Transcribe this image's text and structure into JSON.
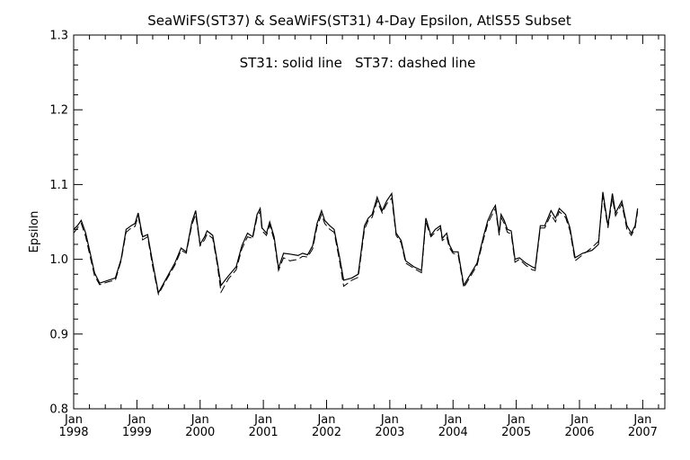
{
  "chart_data": {
    "type": "line",
    "title": "SeaWiFS(ST37) & SeaWiFS(ST31) 4-Day Epsilon, AtlS55 Subset",
    "annotation": "ST31: solid line   ST37: dashed line",
    "ylabel": "Epsilon",
    "xlabel": "",
    "xlim": [
      1998.0,
      2007.35
    ],
    "ylim": [
      0.8,
      1.3
    ],
    "grid": false,
    "y_ticks": [
      "0.8",
      "0.9",
      "1.0",
      "1.1",
      "1.2",
      "1.3"
    ],
    "x_ticks": [
      {
        "month": "Jan",
        "year": "1998",
        "x": 1998
      },
      {
        "month": "Jan",
        "year": "1999",
        "x": 1999
      },
      {
        "month": "Jan",
        "year": "2000",
        "x": 2000
      },
      {
        "month": "Jan",
        "year": "2001",
        "x": 2001
      },
      {
        "month": "Jan",
        "year": "2002",
        "x": 2002
      },
      {
        "month": "Jan",
        "year": "2003",
        "x": 2003
      },
      {
        "month": "Jan",
        "year": "2004",
        "x": 2004
      },
      {
        "month": "Jan",
        "year": "2005",
        "x": 2005
      },
      {
        "month": "Jan",
        "year": "2006",
        "x": 2006
      },
      {
        "month": "Jan",
        "year": "2007",
        "x": 2007
      }
    ],
    "series": [
      {
        "name": "ST31",
        "style": "solid",
        "points": [
          [
            1998.0,
            1.04
          ],
          [
            1998.06,
            1.045
          ],
          [
            1998.12,
            1.052
          ],
          [
            1998.19,
            1.035
          ],
          [
            1998.27,
            1.005
          ],
          [
            1998.33,
            0.982
          ],
          [
            1998.41,
            0.968
          ],
          [
            1998.55,
            0.972
          ],
          [
            1998.66,
            0.975
          ],
          [
            1998.75,
            1.0
          ],
          [
            1998.83,
            1.04
          ],
          [
            1998.91,
            1.045
          ],
          [
            1998.97,
            1.048
          ],
          [
            1999.02,
            1.062
          ],
          [
            1999.09,
            1.03
          ],
          [
            1999.17,
            1.033
          ],
          [
            1999.25,
            0.995
          ],
          [
            1999.34,
            0.955
          ],
          [
            1999.45,
            0.972
          ],
          [
            1999.6,
            0.995
          ],
          [
            1999.7,
            1.015
          ],
          [
            1999.78,
            1.01
          ],
          [
            1999.87,
            1.05
          ],
          [
            1999.93,
            1.065
          ],
          [
            2000.0,
            1.02
          ],
          [
            2000.07,
            1.03
          ],
          [
            2000.11,
            1.038
          ],
          [
            2000.2,
            1.032
          ],
          [
            2000.27,
            0.998
          ],
          [
            2000.33,
            0.965
          ],
          [
            2000.45,
            0.978
          ],
          [
            2000.57,
            0.99
          ],
          [
            2000.66,
            1.018
          ],
          [
            2000.75,
            1.035
          ],
          [
            2000.83,
            1.03
          ],
          [
            2000.9,
            1.06
          ],
          [
            2000.95,
            1.068
          ],
          [
            2000.98,
            1.042
          ],
          [
            2001.05,
            1.035
          ],
          [
            2001.1,
            1.05
          ],
          [
            2001.17,
            1.03
          ],
          [
            2001.24,
            0.988
          ],
          [
            2001.32,
            1.008
          ],
          [
            2001.42,
            1.007
          ],
          [
            2001.55,
            1.005
          ],
          [
            2001.62,
            1.008
          ],
          [
            2001.7,
            1.006
          ],
          [
            2001.78,
            1.018
          ],
          [
            2001.85,
            1.048
          ],
          [
            2001.92,
            1.065
          ],
          [
            2001.97,
            1.052
          ],
          [
            2002.05,
            1.045
          ],
          [
            2002.12,
            1.04
          ],
          [
            2002.2,
            1.005
          ],
          [
            2002.27,
            0.972
          ],
          [
            2002.4,
            0.975
          ],
          [
            2002.5,
            0.98
          ],
          [
            2002.6,
            1.045
          ],
          [
            2002.66,
            1.055
          ],
          [
            2002.72,
            1.06
          ],
          [
            2002.8,
            1.083
          ],
          [
            2002.88,
            1.065
          ],
          [
            2002.95,
            1.078
          ],
          [
            2003.03,
            1.088
          ],
          [
            2003.1,
            1.035
          ],
          [
            2003.18,
            1.025
          ],
          [
            2003.25,
            0.998
          ],
          [
            2003.38,
            0.99
          ],
          [
            2003.5,
            0.985
          ],
          [
            2003.57,
            1.055
          ],
          [
            2003.65,
            1.032
          ],
          [
            2003.72,
            1.04
          ],
          [
            2003.8,
            1.045
          ],
          [
            2003.83,
            1.028
          ],
          [
            2003.9,
            1.035
          ],
          [
            2003.94,
            1.02
          ],
          [
            2004.0,
            1.01
          ],
          [
            2004.08,
            1.01
          ],
          [
            2004.17,
            0.965
          ],
          [
            2004.38,
            0.995
          ],
          [
            2004.48,
            1.03
          ],
          [
            2004.55,
            1.052
          ],
          [
            2004.62,
            1.065
          ],
          [
            2004.67,
            1.072
          ],
          [
            2004.73,
            1.035
          ],
          [
            2004.76,
            1.06
          ],
          [
            2004.81,
            1.052
          ],
          [
            2004.86,
            1.04
          ],
          [
            2004.92,
            1.038
          ],
          [
            2004.98,
            1.0
          ],
          [
            2005.05,
            1.002
          ],
          [
            2005.15,
            0.995
          ],
          [
            2005.25,
            0.99
          ],
          [
            2005.3,
            0.988
          ],
          [
            2005.38,
            1.045
          ],
          [
            2005.45,
            1.045
          ],
          [
            2005.55,
            1.065
          ],
          [
            2005.62,
            1.055
          ],
          [
            2005.68,
            1.068
          ],
          [
            2005.78,
            1.06
          ],
          [
            2005.85,
            1.042
          ],
          [
            2005.93,
            1.002
          ],
          [
            2006.05,
            1.008
          ],
          [
            2006.2,
            1.012
          ],
          [
            2006.3,
            1.02
          ],
          [
            2006.37,
            1.09
          ],
          [
            2006.45,
            1.045
          ],
          [
            2006.52,
            1.088
          ],
          [
            2006.57,
            1.062
          ],
          [
            2006.67,
            1.078
          ],
          [
            2006.75,
            1.045
          ],
          [
            2006.82,
            1.035
          ],
          [
            2006.88,
            1.045
          ],
          [
            2006.92,
            1.068
          ]
        ]
      },
      {
        "name": "ST37",
        "style": "dashed",
        "points": [
          [
            1998.0,
            1.035
          ],
          [
            1998.06,
            1.042
          ],
          [
            1998.12,
            1.048
          ],
          [
            1998.19,
            1.03
          ],
          [
            1998.27,
            1.0
          ],
          [
            1998.33,
            0.978
          ],
          [
            1998.41,
            0.966
          ],
          [
            1998.55,
            0.97
          ],
          [
            1998.66,
            0.972
          ],
          [
            1998.75,
            0.998
          ],
          [
            1998.83,
            1.036
          ],
          [
            1998.91,
            1.042
          ],
          [
            1998.97,
            1.044
          ],
          [
            1999.02,
            1.058
          ],
          [
            1999.09,
            1.026
          ],
          [
            1999.17,
            1.03
          ],
          [
            1999.25,
            0.99
          ],
          [
            1999.34,
            0.953
          ],
          [
            1999.45,
            0.97
          ],
          [
            1999.6,
            0.992
          ],
          [
            1999.7,
            1.012
          ],
          [
            1999.78,
            1.008
          ],
          [
            1999.87,
            1.046
          ],
          [
            1999.93,
            1.06
          ],
          [
            2000.0,
            1.018
          ],
          [
            2000.07,
            1.026
          ],
          [
            2000.11,
            1.034
          ],
          [
            2000.2,
            1.028
          ],
          [
            2000.27,
            0.994
          ],
          [
            2000.33,
            0.956
          ],
          [
            2000.45,
            0.974
          ],
          [
            2000.57,
            0.986
          ],
          [
            2000.66,
            1.014
          ],
          [
            2000.75,
            1.03
          ],
          [
            2000.83,
            1.028
          ],
          [
            2000.9,
            1.056
          ],
          [
            2000.95,
            1.064
          ],
          [
            2000.98,
            1.038
          ],
          [
            2001.05,
            1.032
          ],
          [
            2001.1,
            1.046
          ],
          [
            2001.17,
            1.026
          ],
          [
            2001.24,
            0.985
          ],
          [
            2001.32,
            1.002
          ],
          [
            2001.42,
            0.998
          ],
          [
            2001.55,
            1.0
          ],
          [
            2001.62,
            1.004
          ],
          [
            2001.7,
            1.003
          ],
          [
            2001.78,
            1.014
          ],
          [
            2001.85,
            1.044
          ],
          [
            2001.92,
            1.06
          ],
          [
            2001.97,
            1.048
          ],
          [
            2002.05,
            1.04
          ],
          [
            2002.12,
            1.036
          ],
          [
            2002.2,
            1.0
          ],
          [
            2002.27,
            0.964
          ],
          [
            2002.4,
            0.972
          ],
          [
            2002.5,
            0.976
          ],
          [
            2002.6,
            1.04
          ],
          [
            2002.66,
            1.052
          ],
          [
            2002.72,
            1.056
          ],
          [
            2002.8,
            1.078
          ],
          [
            2002.88,
            1.062
          ],
          [
            2002.95,
            1.074
          ],
          [
            2003.03,
            1.082
          ],
          [
            2003.1,
            1.032
          ],
          [
            2003.18,
            1.022
          ],
          [
            2003.25,
            0.995
          ],
          [
            2003.38,
            0.988
          ],
          [
            2003.5,
            0.982
          ],
          [
            2003.57,
            1.05
          ],
          [
            2003.65,
            1.03
          ],
          [
            2003.72,
            1.036
          ],
          [
            2003.8,
            1.042
          ],
          [
            2003.83,
            1.025
          ],
          [
            2003.9,
            1.03
          ],
          [
            2003.94,
            1.016
          ],
          [
            2004.0,
            1.008
          ],
          [
            2004.08,
            1.006
          ],
          [
            2004.17,
            0.962
          ],
          [
            2004.38,
            0.992
          ],
          [
            2004.48,
            1.026
          ],
          [
            2004.55,
            1.048
          ],
          [
            2004.62,
            1.06
          ],
          [
            2004.67,
            1.068
          ],
          [
            2004.73,
            1.032
          ],
          [
            2004.76,
            1.056
          ],
          [
            2004.81,
            1.048
          ],
          [
            2004.86,
            1.036
          ],
          [
            2004.92,
            1.034
          ],
          [
            2004.98,
            0.996
          ],
          [
            2005.05,
            1.0
          ],
          [
            2005.15,
            0.992
          ],
          [
            2005.25,
            0.986
          ],
          [
            2005.3,
            0.985
          ],
          [
            2005.38,
            1.042
          ],
          [
            2005.45,
            1.042
          ],
          [
            2005.55,
            1.06
          ],
          [
            2005.62,
            1.05
          ],
          [
            2005.68,
            1.064
          ],
          [
            2005.78,
            1.056
          ],
          [
            2005.85,
            1.038
          ],
          [
            2005.93,
            0.998
          ],
          [
            2006.05,
            1.006
          ],
          [
            2006.2,
            1.016
          ],
          [
            2006.3,
            1.024
          ],
          [
            2006.37,
            1.084
          ],
          [
            2006.45,
            1.042
          ],
          [
            2006.52,
            1.082
          ],
          [
            2006.57,
            1.058
          ],
          [
            2006.67,
            1.074
          ],
          [
            2006.75,
            1.04
          ],
          [
            2006.82,
            1.032
          ],
          [
            2006.88,
            1.042
          ],
          [
            2006.92,
            1.064
          ]
        ]
      }
    ]
  }
}
